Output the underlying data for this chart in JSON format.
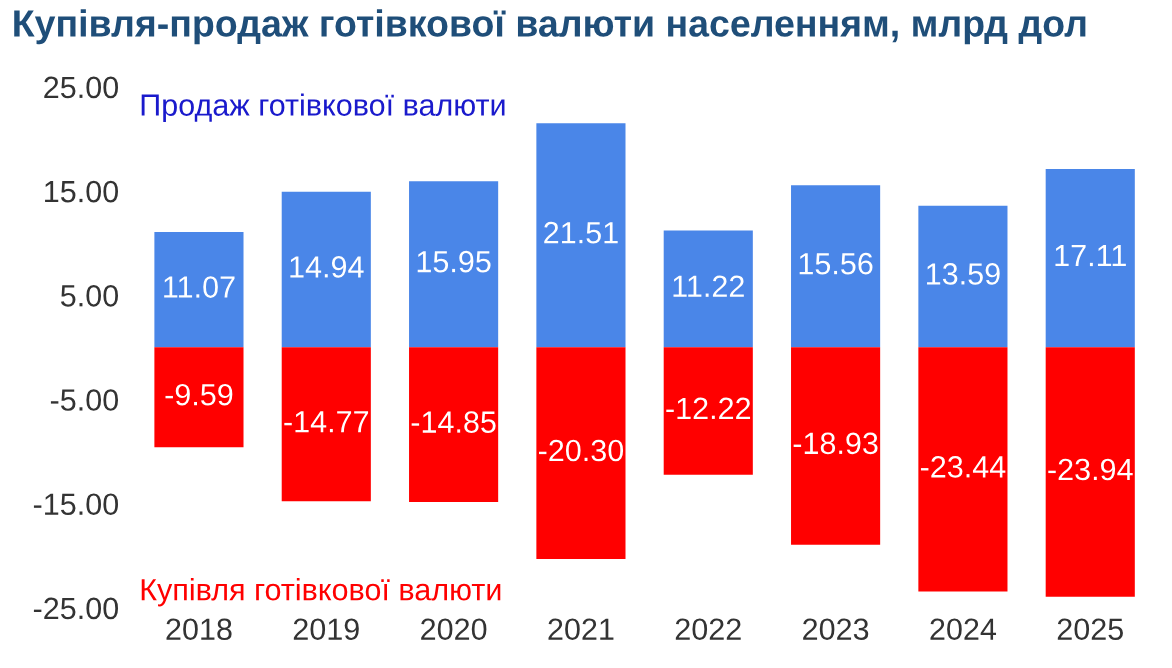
{
  "chart_data": {
    "type": "bar",
    "title": "Купівля-продаж готівкової валюти населенням, млрд дол",
    "categories": [
      "2018",
      "2019",
      "2020",
      "2021",
      "2022",
      "2023",
      "2024",
      "2025"
    ],
    "stacked": true,
    "series": [
      {
        "name": "Продаж готівкової валюти",
        "color": "#4a86e8",
        "values": [
          11.07,
          14.94,
          15.95,
          21.51,
          11.22,
          15.56,
          13.59,
          17.11
        ],
        "value_labels": [
          "11.07",
          "14.94",
          "15.95",
          "21.51",
          "11.22",
          "15.56",
          "13.59",
          "17.11"
        ]
      },
      {
        "name": "Купівля готівкової валюти",
        "color": "#ff0000",
        "values": [
          -9.59,
          -14.77,
          -14.85,
          -20.3,
          -12.22,
          -18.93,
          -23.44,
          -23.94
        ],
        "value_labels": [
          "-9.59",
          "-14.77",
          "-14.85",
          "-20.30",
          "-12.22",
          "-18.93",
          "-23.44",
          "-23.94"
        ]
      }
    ],
    "ylim": [
      -25,
      25
    ],
    "yticks": [
      {
        "value": 25,
        "label": "25.00"
      },
      {
        "value": 15,
        "label": "15.00"
      },
      {
        "value": 5,
        "label": "5.00"
      },
      {
        "value": -5,
        "label": "-5.00"
      },
      {
        "value": -15,
        "label": "-15.00"
      },
      {
        "value": -25,
        "label": "-25.00"
      }
    ],
    "grid": false,
    "legend": "left"
  }
}
